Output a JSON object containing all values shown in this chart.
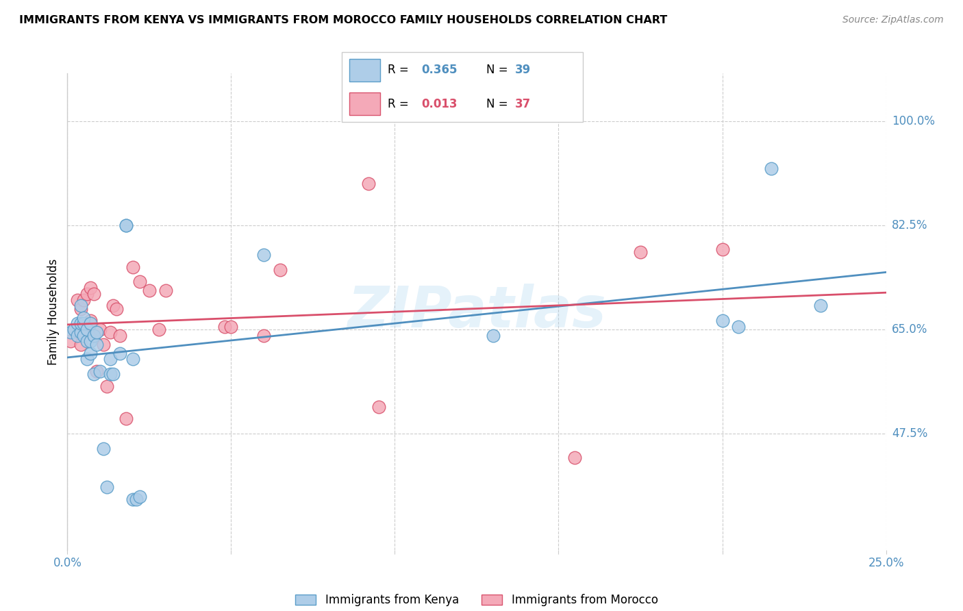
{
  "title": "IMMIGRANTS FROM KENYA VS IMMIGRANTS FROM MOROCCO FAMILY HOUSEHOLDS CORRELATION CHART",
  "source": "Source: ZipAtlas.com",
  "ylabel_text": "Family Households",
  "xlim": [
    0.0,
    0.25
  ],
  "ylim": [
    0.28,
    1.08
  ],
  "xtick_positions": [
    0.0,
    0.05,
    0.1,
    0.15,
    0.2,
    0.25
  ],
  "xtick_labels": [
    "0.0%",
    "",
    "",
    "",
    "",
    "25.0%"
  ],
  "ytick_vals": [
    1.0,
    0.825,
    0.65,
    0.475
  ],
  "ytick_labels": [
    "100.0%",
    "82.5%",
    "65.0%",
    "47.5%"
  ],
  "kenya_R": 0.365,
  "kenya_N": 39,
  "morocco_R": 0.013,
  "morocco_N": 37,
  "kenya_color": "#aecde8",
  "morocco_color": "#f4a9b8",
  "kenya_edge_color": "#5b9ec9",
  "morocco_edge_color": "#d9546e",
  "kenya_line_color": "#4f8fbf",
  "morocco_line_color": "#d94f6b",
  "tick_color": "#4f8fbf",
  "grid_color": "#cccccc",
  "watermark": "ZIPatlas",
  "kenya_x": [
    0.001,
    0.002,
    0.003,
    0.003,
    0.004,
    0.004,
    0.004,
    0.005,
    0.005,
    0.005,
    0.006,
    0.006,
    0.006,
    0.007,
    0.007,
    0.007,
    0.008,
    0.008,
    0.009,
    0.009,
    0.01,
    0.011,
    0.012,
    0.013,
    0.013,
    0.014,
    0.016,
    0.018,
    0.018,
    0.02,
    0.02,
    0.021,
    0.022,
    0.06,
    0.13,
    0.2,
    0.205,
    0.215,
    0.23
  ],
  "kenya_y": [
    0.645,
    0.65,
    0.64,
    0.66,
    0.645,
    0.66,
    0.69,
    0.64,
    0.66,
    0.67,
    0.6,
    0.63,
    0.65,
    0.61,
    0.63,
    0.66,
    0.575,
    0.64,
    0.625,
    0.645,
    0.58,
    0.45,
    0.385,
    0.575,
    0.6,
    0.575,
    0.61,
    0.825,
    0.825,
    0.6,
    0.365,
    0.365,
    0.37,
    0.775,
    0.64,
    0.665,
    0.655,
    0.92,
    0.69
  ],
  "morocco_x": [
    0.001,
    0.002,
    0.003,
    0.004,
    0.004,
    0.005,
    0.005,
    0.006,
    0.006,
    0.007,
    0.007,
    0.007,
    0.008,
    0.008,
    0.009,
    0.01,
    0.011,
    0.012,
    0.013,
    0.014,
    0.015,
    0.016,
    0.018,
    0.02,
    0.022,
    0.025,
    0.028,
    0.03,
    0.048,
    0.05,
    0.06,
    0.065,
    0.092,
    0.095,
    0.155,
    0.175,
    0.2
  ],
  "morocco_y": [
    0.63,
    0.65,
    0.7,
    0.625,
    0.685,
    0.645,
    0.7,
    0.65,
    0.71,
    0.645,
    0.665,
    0.72,
    0.64,
    0.71,
    0.58,
    0.65,
    0.625,
    0.555,
    0.645,
    0.69,
    0.685,
    0.64,
    0.5,
    0.755,
    0.73,
    0.715,
    0.65,
    0.715,
    0.655,
    0.655,
    0.64,
    0.75,
    0.895,
    0.52,
    0.435,
    0.78,
    0.785
  ]
}
